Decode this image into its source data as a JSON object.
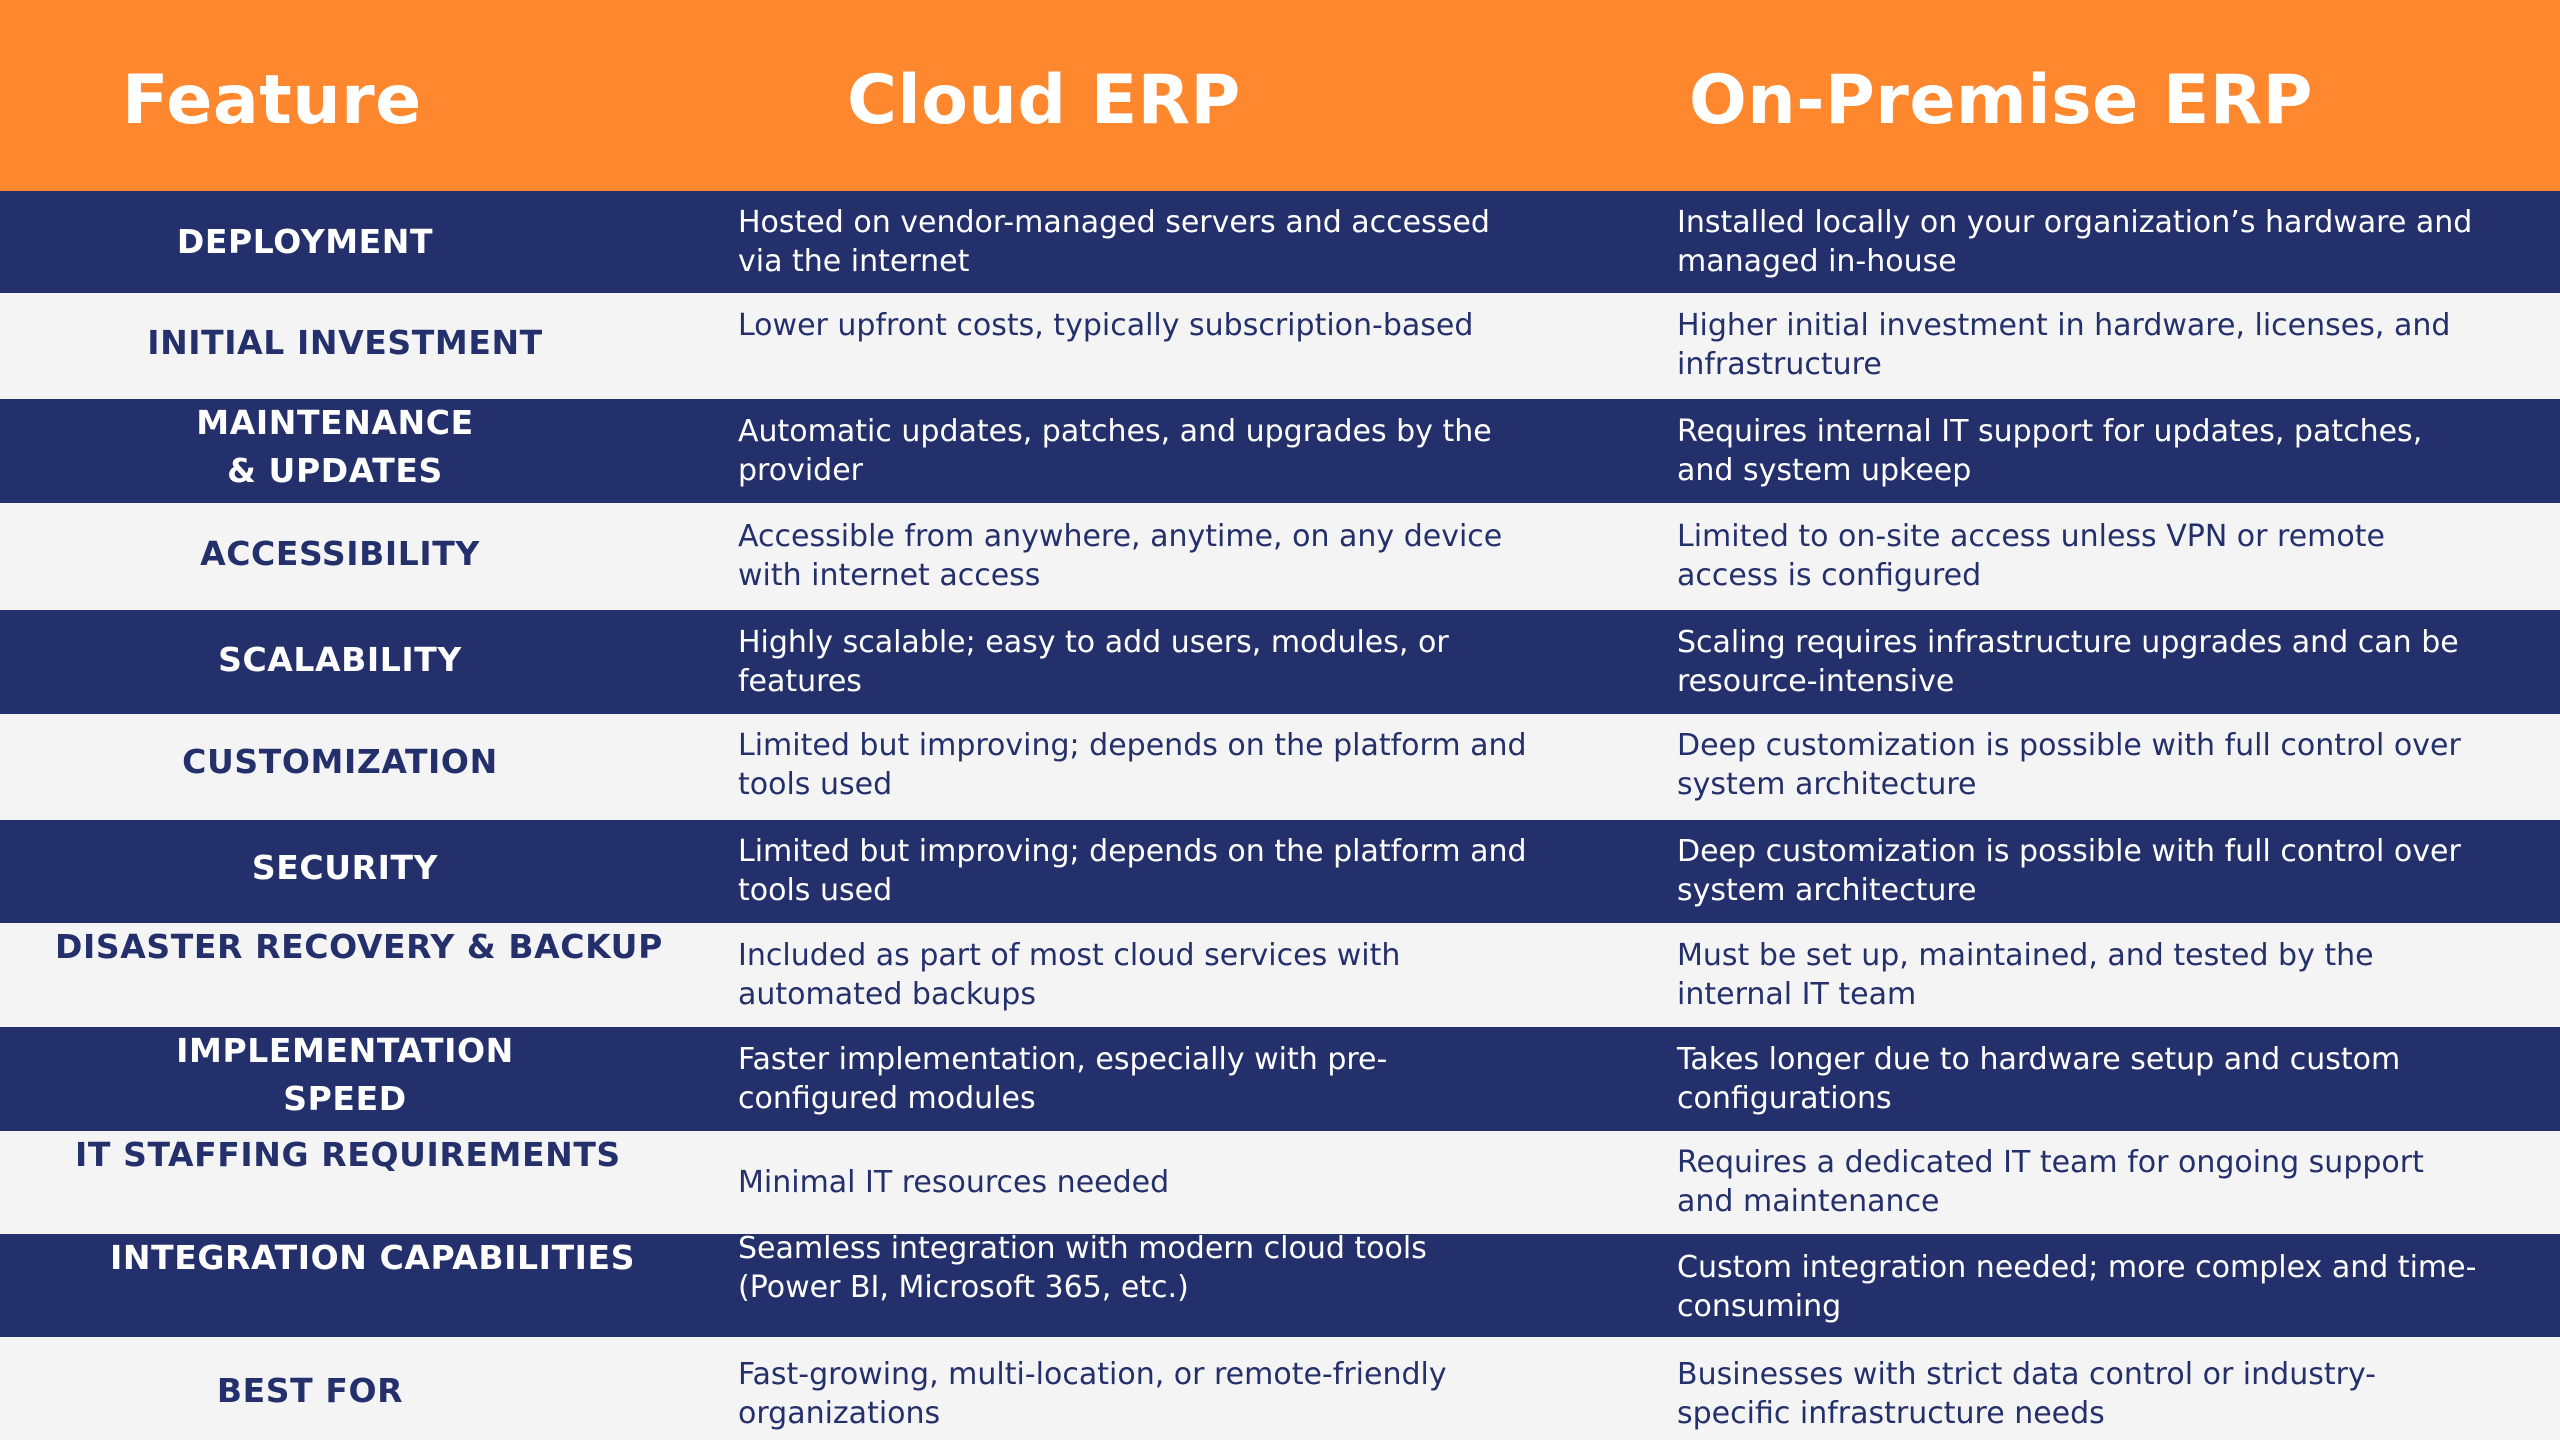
{
  "header": {
    "feature": "Feature",
    "cloud": "Cloud ERP",
    "onprem": "On-Premise ERP"
  },
  "colors": {
    "header_bg": "#ff872e",
    "dark_row": "#24306b",
    "light_row": "#f4f4f4"
  },
  "rows": [
    {
      "feature": "DEPLOYMENT",
      "cloud": "Hosted on vendor-managed servers and accessed via the internet",
      "onprem": "Installed locally on your organization’s hardware and managed in-house"
    },
    {
      "feature": "INITIAL INVESTMENT",
      "cloud": "Lower upfront costs, typically subscription-based",
      "onprem": "Higher initial investment in hardware, licenses, and infrastructure"
    },
    {
      "feature_line1": "MAINTENANCE",
      "feature_line2": "& UPDATES",
      "cloud": "Automatic updates, patches, and upgrades by the provider",
      "onprem": "Requires internal IT support for updates, patches, and system upkeep"
    },
    {
      "feature": "ACCESSIBILITY",
      "cloud": "Accessible from anywhere, anytime, on any device with internet access",
      "onprem": "Limited to on-site access unless VPN or remote access is configured"
    },
    {
      "feature": "SCALABILITY",
      "cloud": "Highly scalable; easy to add users, modules, or features",
      "onprem": "Scaling requires infrastructure upgrades and can be resource-intensive"
    },
    {
      "feature": "CUSTOMIZATION",
      "cloud": "Limited but improving; depends on the platform and tools used",
      "onprem": "Deep customization is possible with full control over system architecture"
    },
    {
      "feature": "SECURITY",
      "cloud": "Limited but improving; depends on the platform and tools used",
      "onprem": "Deep customization is possible with full control over system architecture"
    },
    {
      "feature": "DISASTER RECOVERY & BACKUP",
      "cloud": "Included as part of most cloud services with automated backups",
      "onprem": "Must be set up, maintained, and tested by the internal IT team"
    },
    {
      "feature_line1": "IMPLEMENTATION",
      "feature_line2": "SPEED",
      "cloud": "Faster implementation, especially with pre-configured modules",
      "onprem": "Takes longer due to hardware setup and custom configurations"
    },
    {
      "feature": "IT STAFFING REQUIREMENTS",
      "cloud": "Minimal IT resources needed",
      "onprem": "Requires a dedicated IT team for ongoing support and maintenance"
    },
    {
      "feature": "INTEGRATION CAPABILITIES",
      "cloud": "Seamless integration with modern cloud tools (Power BI, Microsoft 365, etc.)",
      "onprem": "Custom integration needed; more complex and time-consuming"
    },
    {
      "feature": "BEST FOR",
      "cloud": "Fast-growing, multi-location, or remote-friendly organizations",
      "onprem": "Businesses with strict data control or industry-specific infrastructure needs"
    }
  ]
}
